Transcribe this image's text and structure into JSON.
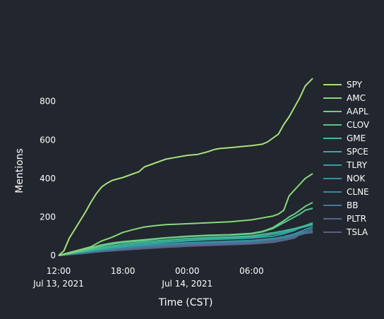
{
  "chart_data": {
    "type": "line",
    "title": "",
    "xlabel": "Time (CST)",
    "ylabel": "Mentions",
    "x_ticks": [
      {
        "t": 0,
        "line1": "12:00",
        "line2": "Jul 13, 2021"
      },
      {
        "t": 6,
        "line1": "18:00",
        "line2": ""
      },
      {
        "t": 12,
        "line1": "00:00",
        "line2": "Jul 14, 2021"
      },
      {
        "t": 18,
        "line1": "06:00",
        "line2": ""
      }
    ],
    "x_range": [
      "2021-07-13 12:00",
      "2021-07-14 11:40"
    ],
    "xlim_hours": [
      0,
      23.7
    ],
    "ylim": [
      0,
      960
    ],
    "y_ticks": [
      0,
      200,
      400,
      600,
      800
    ],
    "grid": false,
    "legend_position": "right",
    "series": [
      {
        "name": "SPY",
        "color": "#a8e07a",
        "points": [
          [
            0,
            0
          ],
          [
            0.5,
            25
          ],
          [
            1,
            90
          ],
          [
            1.5,
            135
          ],
          [
            2,
            180
          ],
          [
            2.5,
            225
          ],
          [
            3,
            275
          ],
          [
            3.5,
            320
          ],
          [
            4,
            355
          ],
          [
            4.5,
            375
          ],
          [
            5,
            390
          ],
          [
            6,
            405
          ],
          [
            7,
            425
          ],
          [
            7.5,
            435
          ],
          [
            8,
            460
          ],
          [
            9,
            480
          ],
          [
            10,
            500
          ],
          [
            11,
            510
          ],
          [
            12,
            520
          ],
          [
            13,
            525
          ],
          [
            14,
            540
          ],
          [
            14.5,
            550
          ],
          [
            15,
            555
          ],
          [
            16,
            560
          ],
          [
            17,
            565
          ],
          [
            18,
            570
          ],
          [
            19,
            578
          ],
          [
            19.5,
            590
          ],
          [
            20,
            610
          ],
          [
            20.5,
            630
          ],
          [
            21,
            680
          ],
          [
            21.5,
            720
          ],
          [
            22,
            770
          ],
          [
            22.5,
            820
          ],
          [
            23,
            880
          ],
          [
            23.7,
            920
          ]
        ]
      },
      {
        "name": "AMC",
        "color": "#8ad77a",
        "points": [
          [
            0,
            0
          ],
          [
            1,
            15
          ],
          [
            2,
            30
          ],
          [
            3,
            45
          ],
          [
            4,
            75
          ],
          [
            5,
            95
          ],
          [
            6,
            120
          ],
          [
            7,
            135
          ],
          [
            8,
            148
          ],
          [
            9,
            155
          ],
          [
            10,
            160
          ],
          [
            12,
            165
          ],
          [
            14,
            170
          ],
          [
            16,
            175
          ],
          [
            18,
            185
          ],
          [
            19,
            195
          ],
          [
            20,
            205
          ],
          [
            20.5,
            215
          ],
          [
            21,
            235
          ],
          [
            21.5,
            310
          ],
          [
            22,
            340
          ],
          [
            22.5,
            370
          ],
          [
            23,
            400
          ],
          [
            23.7,
            425
          ]
        ]
      },
      {
        "name": "AAPL",
        "color": "#6fce84",
        "points": [
          [
            0,
            0
          ],
          [
            1,
            12
          ],
          [
            2,
            25
          ],
          [
            3,
            40
          ],
          [
            4,
            55
          ],
          [
            5,
            65
          ],
          [
            6,
            72
          ],
          [
            8,
            82
          ],
          [
            10,
            92
          ],
          [
            12,
            100
          ],
          [
            14,
            105
          ],
          [
            16,
            108
          ],
          [
            18,
            115
          ],
          [
            19,
            125
          ],
          [
            20,
            145
          ],
          [
            21,
            180
          ],
          [
            21.5,
            200
          ],
          [
            22,
            215
          ],
          [
            22.5,
            235
          ],
          [
            23,
            255
          ],
          [
            23.7,
            275
          ]
        ]
      },
      {
        "name": "CLOV",
        "color": "#57c48e",
        "points": [
          [
            0,
            0
          ],
          [
            1,
            10
          ],
          [
            2,
            22
          ],
          [
            3,
            35
          ],
          [
            4,
            48
          ],
          [
            5,
            58
          ],
          [
            6,
            67
          ],
          [
            8,
            78
          ],
          [
            10,
            90
          ],
          [
            12,
            98
          ],
          [
            14,
            103
          ],
          [
            16,
            106
          ],
          [
            18,
            112
          ],
          [
            19,
            122
          ],
          [
            20,
            140
          ],
          [
            21,
            170
          ],
          [
            22,
            200
          ],
          [
            22.5,
            215
          ],
          [
            23,
            235
          ],
          [
            23.7,
            245
          ]
        ]
      },
      {
        "name": "GME",
        "color": "#44b997",
        "points": [
          [
            0,
            0
          ],
          [
            2,
            20
          ],
          [
            4,
            40
          ],
          [
            6,
            58
          ],
          [
            8,
            70
          ],
          [
            10,
            80
          ],
          [
            12,
            88
          ],
          [
            14,
            93
          ],
          [
            16,
            96
          ],
          [
            18,
            102
          ],
          [
            19,
            110
          ],
          [
            20,
            118
          ],
          [
            21,
            128
          ],
          [
            22,
            140
          ],
          [
            23,
            155
          ],
          [
            23.7,
            165
          ]
        ]
      },
      {
        "name": "SPCE",
        "color": "#35ad9c",
        "points": [
          [
            0,
            0
          ],
          [
            2,
            18
          ],
          [
            4,
            35
          ],
          [
            6,
            50
          ],
          [
            8,
            62
          ],
          [
            10,
            72
          ],
          [
            12,
            80
          ],
          [
            14,
            86
          ],
          [
            16,
            90
          ],
          [
            18,
            96
          ],
          [
            19,
            102
          ],
          [
            20,
            110
          ],
          [
            21,
            120
          ],
          [
            22,
            135
          ],
          [
            23,
            150
          ],
          [
            23.7,
            160
          ]
        ]
      },
      {
        "name": "TLRY",
        "color": "#2ea09f",
        "points": [
          [
            0,
            0
          ],
          [
            2,
            16
          ],
          [
            4,
            32
          ],
          [
            6,
            46
          ],
          [
            8,
            58
          ],
          [
            10,
            68
          ],
          [
            12,
            76
          ],
          [
            14,
            82
          ],
          [
            16,
            86
          ],
          [
            18,
            90
          ],
          [
            20,
            100
          ],
          [
            21,
            112
          ],
          [
            22,
            130
          ],
          [
            23,
            155
          ],
          [
            23.7,
            170
          ]
        ]
      },
      {
        "name": "NOK",
        "color": "#3592a0",
        "points": [
          [
            0,
            0
          ],
          [
            2,
            15
          ],
          [
            4,
            30
          ],
          [
            6,
            42
          ],
          [
            8,
            52
          ],
          [
            10,
            60
          ],
          [
            12,
            66
          ],
          [
            14,
            70
          ],
          [
            16,
            74
          ],
          [
            18,
            78
          ],
          [
            20,
            88
          ],
          [
            21,
            98
          ],
          [
            22,
            112
          ],
          [
            23,
            135
          ],
          [
            23.7,
            150
          ]
        ]
      },
      {
        "name": "CLNE",
        "color": "#3e849c",
        "points": [
          [
            0,
            0
          ],
          [
            2,
            14
          ],
          [
            4,
            28
          ],
          [
            6,
            40
          ],
          [
            8,
            50
          ],
          [
            10,
            58
          ],
          [
            12,
            64
          ],
          [
            14,
            68
          ],
          [
            16,
            72
          ],
          [
            18,
            76
          ],
          [
            20,
            86
          ],
          [
            21,
            96
          ],
          [
            22,
            108
          ],
          [
            23,
            125
          ],
          [
            23.7,
            140
          ]
        ]
      },
      {
        "name": "BB",
        "color": "#4a7596",
        "points": [
          [
            0,
            0
          ],
          [
            2,
            12
          ],
          [
            4,
            25
          ],
          [
            6,
            35
          ],
          [
            8,
            45
          ],
          [
            10,
            52
          ],
          [
            12,
            58
          ],
          [
            14,
            62
          ],
          [
            16,
            66
          ],
          [
            18,
            70
          ],
          [
            20,
            80
          ],
          [
            21,
            90
          ],
          [
            22,
            100
          ],
          [
            23,
            115
          ],
          [
            23.7,
            130
          ]
        ]
      },
      {
        "name": "PLTR",
        "color": "#55688d",
        "points": [
          [
            0,
            0
          ],
          [
            2,
            10
          ],
          [
            4,
            22
          ],
          [
            6,
            32
          ],
          [
            8,
            40
          ],
          [
            10,
            46
          ],
          [
            12,
            52
          ],
          [
            14,
            56
          ],
          [
            16,
            60
          ],
          [
            18,
            64
          ],
          [
            20,
            72
          ],
          [
            21,
            82
          ],
          [
            22,
            95
          ],
          [
            22.5,
            115
          ],
          [
            23,
            118
          ],
          [
            23.7,
            125
          ]
        ]
      },
      {
        "name": "TSLA",
        "color": "#5e5c84",
        "points": [
          [
            0,
            0
          ],
          [
            2,
            9
          ],
          [
            4,
            20
          ],
          [
            6,
            28
          ],
          [
            8,
            36
          ],
          [
            10,
            42
          ],
          [
            12,
            48
          ],
          [
            14,
            52
          ],
          [
            16,
            56
          ],
          [
            18,
            60
          ],
          [
            20,
            68
          ],
          [
            21,
            78
          ],
          [
            22,
            90
          ],
          [
            22.5,
            110
          ],
          [
            23,
            115
          ],
          [
            23.7,
            118
          ]
        ]
      }
    ]
  }
}
